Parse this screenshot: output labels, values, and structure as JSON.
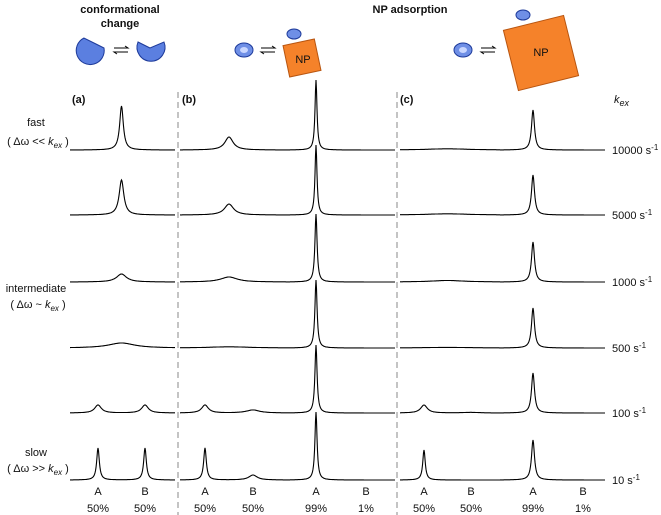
{
  "header": {
    "left_title": [
      "conformational",
      "change"
    ],
    "center_title": "NP adsorption",
    "np_labels": [
      "NP",
      "NP"
    ]
  },
  "kex_symbol": {
    "k": "k",
    "sub": "ex"
  },
  "panel_labels": [
    "(a)",
    "(b)",
    "(c)"
  ],
  "regimes": [
    {
      "name": "fast",
      "cond_pre": "( Δω << ",
      "cond_post": " )"
    },
    {
      "name": "intermediate",
      "cond_pre": "( Δω ~ ",
      "cond_post": " )"
    },
    {
      "name": "slow",
      "cond_pre": "( Δω >> ",
      "cond_post": " )"
    }
  ],
  "rates": [
    {
      "value": "10000 s",
      "exp": "-1"
    },
    {
      "value": "5000 s",
      "exp": "-1"
    },
    {
      "value": "1000 s",
      "exp": "-1"
    },
    {
      "value": "500 s",
      "exp": "-1"
    },
    {
      "value": "100 s",
      "exp": "-1"
    },
    {
      "value": "10 s",
      "exp": "-1"
    }
  ],
  "columns": [
    {
      "peaks": [
        "A",
        "B"
      ],
      "populations": [
        "50%",
        "50%"
      ]
    },
    {
      "peaks": [
        "A",
        "B"
      ],
      "populations": [
        "50%",
        "50%"
      ]
    },
    {
      "peaks": [
        "A",
        "B"
      ],
      "populations": [
        "99%",
        "1%"
      ]
    },
    {
      "peaks": [
        "A",
        "B"
      ],
      "populations": [
        "50%",
        "50%"
      ]
    },
    {
      "peaks": [
        "A",
        "B"
      ],
      "populations": [
        "99%",
        "1%"
      ]
    }
  ]
}
